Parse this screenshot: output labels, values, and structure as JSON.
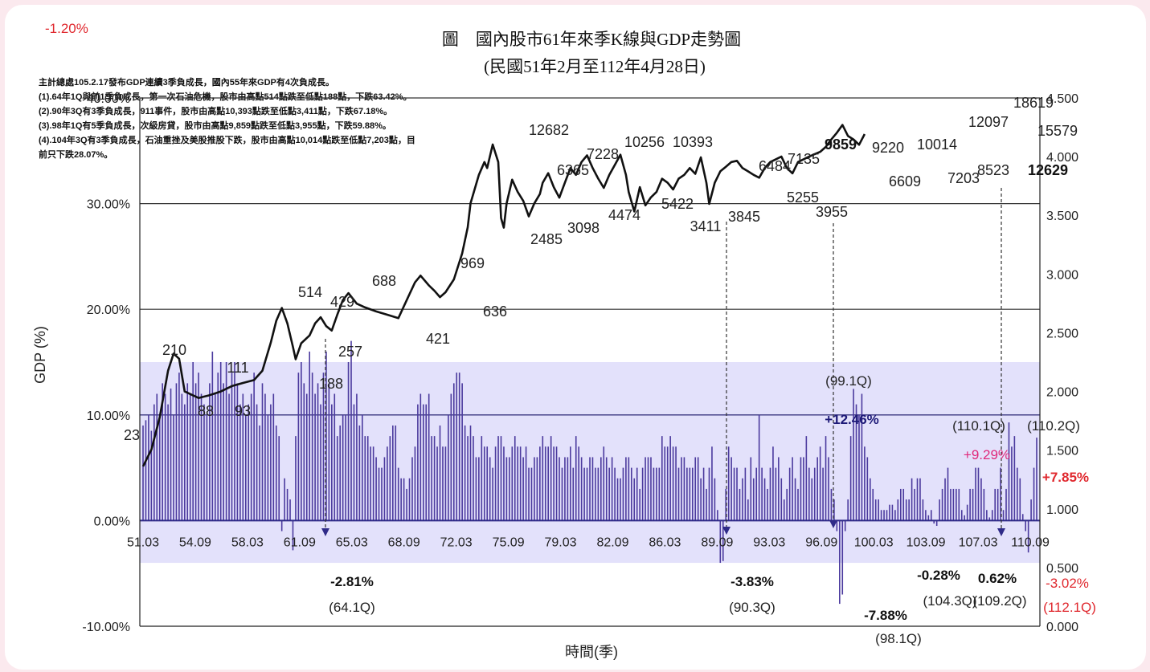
{
  "corner_value": "-1.20%",
  "chart_data": {
    "type": "bar+candlestick",
    "title": "圖　國內股市61年來季K線與GDP走勢圖",
    "subtitle": "(民國51年2月至112年4月28日)",
    "xlabel": "時間(季)",
    "ylabel": "GDP (%)",
    "notes": [
      "主計總處105.2.17發布GDP連續3季負成長，國內55年來GDP有4次負成長。",
      "(1).64年1Q與前1季負成長，第一次石油危機，股市由高點514點跌至低點188點，下跌63.42%。",
      "(2).90年3Q有3季負成長，911事件，股市由高點10,393點跌至低點3,411點，下跌67.18%。",
      "(3).98年1Q有5季負成長，次級房貸，股市由高點9,859點跌至低點3,955點，下跌59.88%。",
      "(4).104年3Q有3季負成長，石油重挫及美股推股下跌，股市由高點10,014點跌至低點7,203點，目",
      "前只下跌28.07%。"
    ],
    "x_ticks": [
      "51.03",
      "54.09",
      "58.03",
      "61.09",
      "65.03",
      "68.09",
      "72.03",
      "75.09",
      "79.03",
      "82.09",
      "86.03",
      "89.09",
      "93.03",
      "96.09",
      "100.03",
      "103.09",
      "107.03",
      "110.09"
    ],
    "y_left": {
      "min": -10,
      "max": 40,
      "ticks": [
        "-10.00%",
        "0.00%",
        "10.00%",
        "20.00%",
        "30.00%",
        "40.00%"
      ]
    },
    "y_right": {
      "min": 0,
      "max": 4.5,
      "ticks": [
        "0.000",
        "0.500",
        "1.000",
        "1.500",
        "2.000",
        "2.500",
        "3.000",
        "3.500",
        "4.000",
        "4.500"
      ],
      "scale": "log10 of index"
    },
    "grid": "horizontal",
    "shaded_band_pct": [
      -4,
      15
    ],
    "gdp_quarters_start": "51.1Q",
    "gdp_growth_pct": [
      9,
      9.5,
      10,
      8.5,
      11,
      12,
      10,
      13,
      12,
      11,
      12.5,
      10,
      13,
      14,
      12,
      11,
      13,
      12,
      15,
      13,
      14,
      12,
      11,
      10,
      13,
      16,
      12,
      14,
      15,
      13,
      15,
      12,
      14,
      15,
      13,
      11,
      12,
      10,
      11,
      12,
      14,
      11,
      9,
      13,
      12,
      10,
      11,
      12,
      9,
      8,
      -1,
      4,
      3,
      2,
      -2.81,
      8,
      14,
      15,
      13,
      12,
      16,
      14,
      12,
      13,
      11,
      14,
      16,
      13,
      11,
      12,
      8,
      9,
      10,
      10,
      15,
      17,
      11,
      12,
      9,
      10,
      8,
      8,
      7,
      7,
      6,
      5,
      5,
      6,
      7,
      8,
      9,
      9,
      5,
      4,
      4,
      3,
      4,
      6,
      7,
      11,
      12,
      11,
      11,
      12,
      8,
      8,
      7,
      9,
      7,
      7,
      10,
      12,
      13,
      14,
      14,
      13,
      9,
      8,
      9,
      8,
      6,
      6,
      8,
      7,
      7,
      6,
      5,
      7,
      8,
      8,
      7,
      6,
      6,
      7,
      8,
      7,
      7,
      6,
      7,
      5,
      5,
      6,
      6,
      7,
      8,
      7,
      7,
      8,
      7,
      7,
      6,
      5,
      6,
      6,
      7,
      5,
      8,
      7,
      6,
      5,
      5,
      6,
      6,
      5,
      5,
      6,
      7,
      6,
      5,
      6,
      5,
      4,
      4,
      5,
      6,
      6,
      5,
      4,
      5,
      3,
      5,
      6,
      6,
      6,
      5,
      5,
      5,
      8,
      7,
      7,
      8,
      7,
      7,
      5,
      6,
      6,
      5,
      5,
      5,
      6,
      6,
      4,
      5,
      3,
      5,
      7,
      4,
      1,
      -4,
      -3.83,
      3,
      7,
      6,
      5,
      5,
      3,
      4,
      5,
      2,
      6,
      4,
      5,
      10,
      5,
      4,
      3,
      5,
      7,
      5,
      6,
      4,
      2,
      3,
      5,
      6,
      4,
      3,
      6,
      6,
      8,
      5,
      4,
      5,
      6,
      7,
      5,
      8,
      6,
      3,
      2,
      -1,
      -7.88,
      -7,
      -1,
      2,
      8,
      12.46,
      11,
      10,
      12,
      7,
      6,
      4,
      3,
      2,
      2,
      1,
      1,
      1,
      1.5,
      1.5,
      1,
      2,
      3,
      3,
      2,
      2,
      4,
      3,
      4,
      4,
      2,
      1,
      0.5,
      1,
      -0.28,
      -0.5,
      2,
      3,
      4,
      5,
      3,
      3,
      3,
      3,
      1,
      0.5,
      1.5,
      3,
      3,
      5,
      5,
      4,
      3,
      1,
      0.3,
      1,
      3,
      3,
      5,
      1,
      3,
      9.29,
      7,
      8,
      5,
      4,
      0.62,
      -1,
      -3.02,
      2,
      5,
      7.85
    ],
    "labels": {
      "neg1": "-2.81%",
      "neg1_q": "(64.1Q)",
      "neg2": "-3.83%",
      "neg2_q": "(90.3Q)",
      "neg3": "-7.88%",
      "neg3_q": "(98.1Q)",
      "pos1": "+12.46%",
      "pos1_q": "(99.1Q)",
      "small1": "-0.28%",
      "small1_q": "(104.3Q)",
      "small2": "0.62%",
      "small2_q": "(109.2Q)",
      "pos2": "+9.29%",
      "pos2_q": "(110.1Q)",
      "pos3": "+7.85%",
      "pos3_q": "(110.2Q)",
      "last": "-3.02%",
      "last_q": "(112.1Q)"
    },
    "index_path": [
      [
        0,
        23
      ],
      [
        3,
        32
      ],
      [
        6,
        60
      ],
      [
        9,
        150
      ],
      [
        11,
        210
      ],
      [
        13,
        190
      ],
      [
        15,
        100
      ],
      [
        20,
        88
      ],
      [
        24,
        93
      ],
      [
        28,
        100
      ],
      [
        32,
        111
      ],
      [
        36,
        118
      ],
      [
        40,
        125
      ],
      [
        43,
        150
      ],
      [
        46,
        260
      ],
      [
        48,
        400
      ],
      [
        50,
        514
      ],
      [
        52,
        380
      ],
      [
        54,
        240
      ],
      [
        55,
        188
      ],
      [
        57,
        257
      ],
      [
        60,
        300
      ],
      [
        62,
        380
      ],
      [
        64,
        429
      ],
      [
        66,
        360
      ],
      [
        68,
        330
      ],
      [
        70,
        450
      ],
      [
        72,
        600
      ],
      [
        74,
        688
      ],
      [
        77,
        560
      ],
      [
        80,
        520
      ],
      [
        84,
        480
      ],
      [
        88,
        450
      ],
      [
        92,
        421
      ],
      [
        95,
        600
      ],
      [
        98,
        850
      ],
      [
        100,
        969
      ],
      [
        103,
        800
      ],
      [
        105,
        720
      ],
      [
        107,
        636
      ],
      [
        109,
        700
      ],
      [
        112,
        900
      ],
      [
        115,
        1500
      ],
      [
        117,
        2500
      ],
      [
        118,
        4000
      ],
      [
        121,
        7000
      ],
      [
        123,
        9000
      ],
      [
        124,
        8000
      ],
      [
        126,
        12682
      ],
      [
        128,
        9000
      ],
      [
        129,
        3000
      ],
      [
        130,
        2485
      ],
      [
        131,
        4000
      ],
      [
        133,
        6365
      ],
      [
        135,
        5000
      ],
      [
        137,
        4200
      ],
      [
        139,
        3098
      ],
      [
        141,
        4000
      ],
      [
        143,
        4800
      ],
      [
        144,
        6000
      ],
      [
        146,
        7228
      ],
      [
        148,
        5500
      ],
      [
        150,
        4474
      ],
      [
        152,
        6000
      ],
      [
        154,
        8000
      ],
      [
        156,
        7000
      ],
      [
        158,
        9000
      ],
      [
        160,
        10256
      ],
      [
        162,
        8000
      ],
      [
        164,
        6500
      ],
      [
        166,
        5422
      ],
      [
        168,
        7000
      ],
      [
        170,
        8500
      ],
      [
        172,
        10393
      ],
      [
        174,
        7000
      ],
      [
        175,
        5000
      ],
      [
        177,
        3411
      ],
      [
        179,
        5500
      ],
      [
        181,
        3845
      ],
      [
        183,
        4500
      ],
      [
        185,
        5000
      ],
      [
        187,
        6484
      ],
      [
        189,
        6000
      ],
      [
        191,
        5255
      ],
      [
        193,
        6500
      ],
      [
        195,
        7000
      ],
      [
        197,
        8000
      ],
      [
        199,
        7135
      ],
      [
        201,
        9859
      ],
      [
        203,
        6000
      ],
      [
        204,
        3955
      ],
      [
        206,
        6000
      ],
      [
        208,
        7500
      ],
      [
        210,
        8200
      ],
      [
        212,
        9000
      ],
      [
        214,
        9220
      ],
      [
        216,
        8000
      ],
      [
        218,
        7500
      ],
      [
        220,
        7000
      ],
      [
        222,
        6609
      ],
      [
        224,
        8000
      ],
      [
        226,
        9000
      ],
      [
        228,
        9500
      ],
      [
        230,
        10014
      ],
      [
        232,
        8000
      ],
      [
        234,
        7203
      ],
      [
        236,
        9000
      ],
      [
        238,
        9500
      ],
      [
        240,
        10000
      ],
      [
        242,
        10500
      ],
      [
        244,
        11000
      ],
      [
        246,
        12097
      ],
      [
        248,
        14000
      ],
      [
        250,
        16000
      ],
      [
        252,
        18619
      ],
      [
        254,
        15000
      ],
      [
        256,
        14000
      ],
      [
        258,
        12629
      ],
      [
        260,
        15579
      ]
    ],
    "index_labels": [
      "23",
      "210",
      "111",
      "88",
      "93",
      "514",
      "429",
      "688",
      "257",
      "188",
      "421",
      "969",
      "636",
      "12682",
      "6365",
      "7228",
      "10256",
      "10393",
      "2485",
      "3098",
      "4474",
      "5422",
      "3411",
      "3845",
      "6484",
      "7135",
      "9859",
      "9220",
      "10014",
      "12097",
      "18619",
      "15579",
      "5255",
      "3955",
      "6609",
      "7203",
      "8523",
      "12629"
    ]
  }
}
